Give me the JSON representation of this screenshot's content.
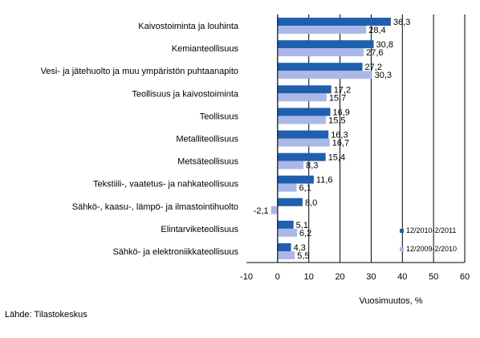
{
  "chart_data": {
    "type": "bar",
    "orientation": "horizontal",
    "categories": [
      "Kaivostoiminta ja louhinta",
      "Kemianteollisuus",
      "Vesi- ja jätehuolto ja muu ympäristön puhtaanapito",
      "Teollisuus ja kaivostoiminta",
      "Teollisuus",
      "Metalliteollisuus",
      "Metsäteollisuus",
      "Tekstiili-, vaatetus- ja nahkateollisuus",
      "Sähkö-, kaasu-, lämpö- ja ilmastointihuolto",
      "Elintarviketeollisuus",
      "Sähkö- ja elektroniikkateollisuus"
    ],
    "series": [
      {
        "name": "12/2010-2/2011",
        "color": "#1f5fae",
        "values": [
          36.3,
          30.8,
          27.2,
          17.2,
          16.9,
          16.3,
          15.4,
          11.6,
          8.0,
          5.1,
          4.3
        ],
        "labels": [
          "36,3",
          "30,8",
          "27,2",
          "17,2",
          "16,9",
          "16,3",
          "15,4",
          "11,6",
          "8,0",
          "5,1",
          "4,3"
        ]
      },
      {
        "name": "12/2009-2/2010",
        "color": "#a9b8e8",
        "values": [
          28.4,
          27.6,
          30.3,
          15.7,
          15.5,
          16.7,
          8.3,
          6.1,
          -2.1,
          6.2,
          5.5
        ],
        "labels": [
          "28,4",
          "27,6",
          "30,3",
          "15,7",
          "15,5",
          "16,7",
          "8,3",
          "6,1",
          "-2,1",
          "6,2",
          "5,5"
        ]
      }
    ],
    "xlim": [
      -10,
      60
    ],
    "xticks": [
      -10,
      0,
      10,
      20,
      30,
      40,
      50,
      60
    ],
    "xlabel": "Vuosimuutos, %",
    "grid": "vertical",
    "legend": "bottom-right"
  },
  "source": "Lähde: Tilastokeskus"
}
